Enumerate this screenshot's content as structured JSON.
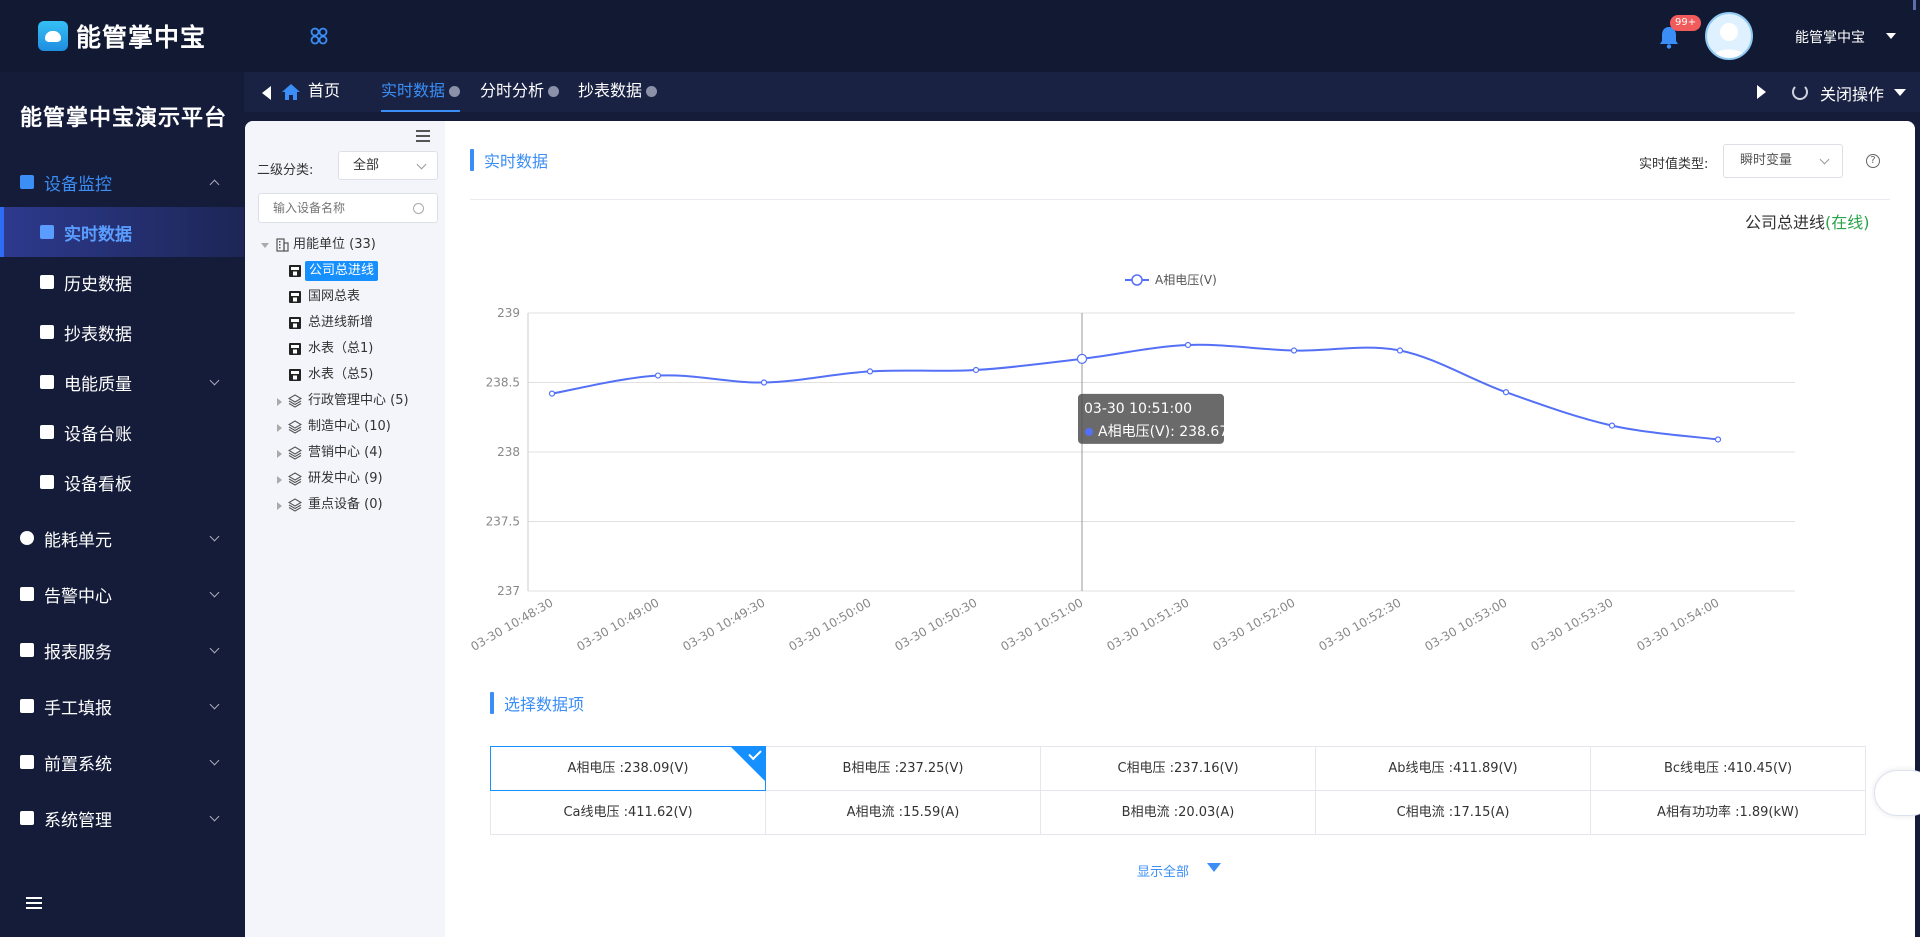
{
  "app": {
    "logo_text": "能管掌中宝",
    "platform_title": "能管掌中宝演示平台",
    "notification_badge": "99+",
    "user_name": "能管掌中宝"
  },
  "sidebar": {
    "items": [
      {
        "label": "设备监控",
        "icon": "grid-icon",
        "expanded": true
      },
      {
        "label": "实时数据",
        "icon": "doc-icon",
        "sub": true,
        "active": true
      },
      {
        "label": "历史数据",
        "icon": "doc-icon",
        "sub": true
      },
      {
        "label": "抄表数据",
        "icon": "doc-icon",
        "sub": true
      },
      {
        "label": "电能质量",
        "icon": "doc-icon",
        "sub": true,
        "chevron": true
      },
      {
        "label": "设备台账",
        "icon": "ledger-icon",
        "sub": true
      },
      {
        "label": "设备看板",
        "icon": "monitor-icon",
        "sub": true
      },
      {
        "label": "能耗单元",
        "icon": "energy-icon",
        "chevron": true
      },
      {
        "label": "告警中心",
        "icon": "alarm-icon",
        "chevron": true
      },
      {
        "label": "报表服务",
        "icon": "report-icon",
        "chevron": true
      },
      {
        "label": "手工填报",
        "icon": "form-icon",
        "chevron": true
      },
      {
        "label": "前置系统",
        "icon": "front-icon",
        "chevron": true
      },
      {
        "label": "系统管理",
        "icon": "system-icon",
        "chevron": true
      }
    ]
  },
  "tabs": {
    "home_label": "首页",
    "items": [
      {
        "label": "实时数据",
        "active": true
      },
      {
        "label": "分时分析"
      },
      {
        "label": "抄表数据"
      }
    ],
    "close_ops_label": "关闭操作"
  },
  "tree_pane": {
    "category_label": "二级分类:",
    "category_value": "全部",
    "search_placeholder": "输入设备名称",
    "nodes": [
      {
        "label": "用能单位 (33)",
        "level": 0,
        "expanded": true,
        "icon": "building-icon"
      },
      {
        "label": "公司总进线",
        "level": 1,
        "selected": true,
        "icon": "meter-icon"
      },
      {
        "label": "国网总表",
        "level": 1,
        "icon": "meter-icon"
      },
      {
        "label": "总进线新增",
        "level": 1,
        "icon": "meter-icon"
      },
      {
        "label": "水表（总1)",
        "level": 1,
        "icon": "water-meter-icon"
      },
      {
        "label": "水表（总5)",
        "level": 1,
        "icon": "water-meter-icon"
      },
      {
        "label": "行政管理中心 (5)",
        "level": 1,
        "collapsed": true,
        "icon": "layers-icon"
      },
      {
        "label": "制造中心 (10)",
        "level": 1,
        "collapsed": true,
        "icon": "layers-icon"
      },
      {
        "label": "营销中心 (4)",
        "level": 1,
        "collapsed": true,
        "icon": "layers-icon"
      },
      {
        "label": "研发中心 (9)",
        "level": 1,
        "collapsed": true,
        "icon": "layers-icon"
      },
      {
        "label": "重点设备 (0)",
        "level": 1,
        "collapsed": true,
        "icon": "layers-icon"
      }
    ]
  },
  "main": {
    "section_title": "实时数据",
    "value_type_label": "实时值类型:",
    "value_type_value": "瞬时变量",
    "device_name": "公司总进线",
    "device_status": "(在线)",
    "select_title": "选择数据项",
    "show_all_label": "显示全部",
    "data_items": [
      [
        {
          "label": "A相电压 :238.09(V)",
          "selected": true
        },
        {
          "label": "B相电压 :237.25(V)"
        },
        {
          "label": "C相电压 :237.16(V)"
        },
        {
          "label": "Ab线电压 :411.89(V)"
        },
        {
          "label": "Bc线电压 :410.45(V)"
        }
      ],
      [
        {
          "label": "Ca线电压 :411.62(V)"
        },
        {
          "label": "A相电流 :15.59(A)"
        },
        {
          "label": "B相电流 :20.03(A)"
        },
        {
          "label": "C相电流 :17.15(A)"
        },
        {
          "label": "A相有功功率 :1.89(kW)"
        }
      ]
    ]
  },
  "colors": {
    "accent": "#3a8ef6",
    "sidebar_bg": "#151c3a",
    "series_line": "#5470f6",
    "online": "#2aa24a"
  },
  "chart_data": {
    "type": "line",
    "x": [
      "03-30 10:48:30",
      "03-30 10:49:00",
      "03-30 10:49:30",
      "03-30 10:50:00",
      "03-30 10:50:30",
      "03-30 10:51:00",
      "03-30 10:51:30",
      "03-30 10:52:00",
      "03-30 10:52:30",
      "03-30 10:53:00",
      "03-30 10:53:30",
      "03-30 10:54:00"
    ],
    "series": [
      {
        "name": "A相电压(V)",
        "values": [
          238.42,
          238.55,
          238.5,
          238.58,
          238.59,
          238.67,
          238.77,
          238.73,
          238.73,
          238.43,
          238.19,
          238.09
        ]
      }
    ],
    "y_ticks": [
      "239",
      "238.5",
      "238",
      "237.5",
      "237"
    ],
    "ylim": [
      237,
      239
    ],
    "grid": true,
    "legend_position": "top-center",
    "tooltip": {
      "title": "03-30 10:51:00",
      "text": "A相电压(V): 238.67",
      "index": 5
    }
  }
}
